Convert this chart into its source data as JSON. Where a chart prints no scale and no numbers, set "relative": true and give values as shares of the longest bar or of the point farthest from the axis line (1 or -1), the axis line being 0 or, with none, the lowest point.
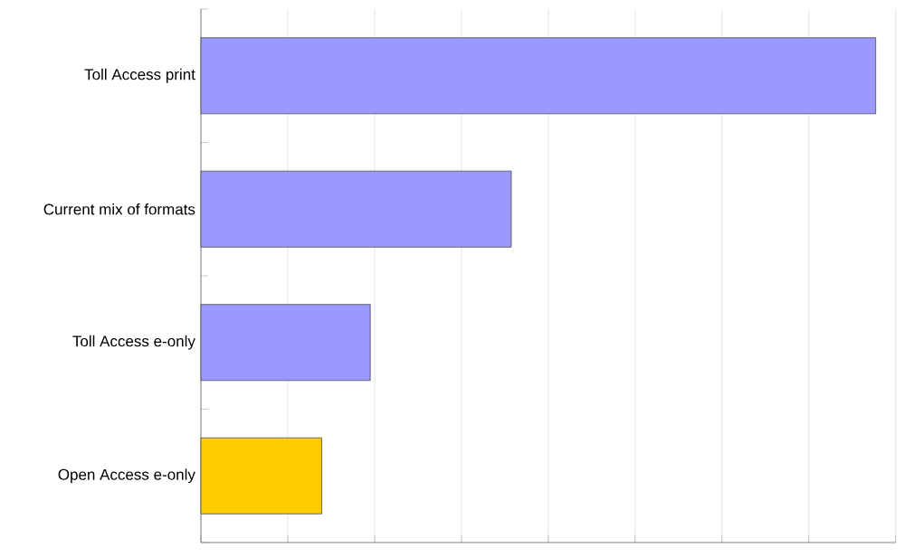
{
  "chart_data": {
    "type": "bar",
    "orientation": "horizontal",
    "relative": true,
    "grid": "x",
    "categories": [
      "Toll Access print",
      "Current mix of formats",
      "Toll Access e-only",
      "Open Access e-only"
    ],
    "values": [
      1,
      0.46,
      0.251,
      0.179
    ],
    "colors": [
      "#9999ff",
      "#9999ff",
      "#9999ff",
      "#ffcc00"
    ]
  }
}
